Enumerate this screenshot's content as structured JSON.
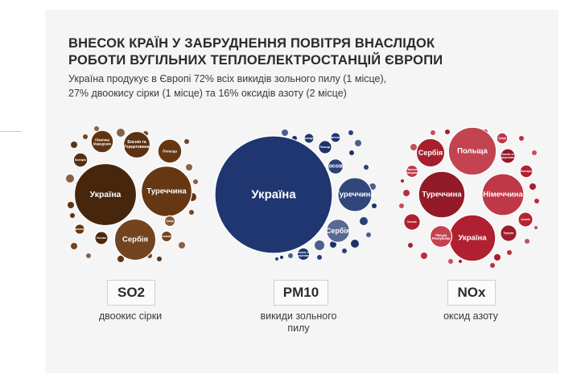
{
  "header": {
    "title_line1": "ВНЕСОК КРАЇН У ЗАБРУДНЕННЯ ПОВІТРЯ ВНАСЛІДОК",
    "title_line2": "РОБОТИ ВУГІЛЬНИХ ТЕПЛОЕЛЕКТРОСТАНЦІЙ ЄВРОПИ",
    "subtitle_line1": "Україна продукує в Європі  72% всіх викидів зольного пилу (1 місце),",
    "subtitle_line2": "27% двоокису сірки (1 місце) та 16% оксидів азоту (2 місце)"
  },
  "colors": {
    "so2": "#6b3a14",
    "pm10": "#1f3670",
    "nox": "#b82232",
    "card_bg": "#f5f5f6"
  },
  "chart_data": [
    {
      "type": "bubble",
      "metric": "SO2",
      "label": "двоокис сірки",
      "color": "#6b3a14",
      "share_ukraine_percent": 27,
      "bubbles": [
        {
          "name": "Україна",
          "value": 27
        },
        {
          "name": "Туреччина",
          "value": 18
        },
        {
          "name": "Сербія",
          "value": 12
        },
        {
          "name": "Боснія та Герцеговина",
          "value": 5
        },
        {
          "name": "Польща",
          "value": 4
        },
        {
          "name": "Північна Македонія",
          "value": 3.5
        },
        {
          "name": "Болгарія",
          "value": 1.4
        },
        {
          "name": "Косово",
          "value": 1.2
        },
        {
          "name": "Чорногорія",
          "value": 0.7
        },
        {
          "name": "Іспанія",
          "value": 0.8
        },
        {
          "name": "Греція",
          "value": 0.8
        }
      ]
    },
    {
      "type": "bubble",
      "metric": "PM10",
      "label_line1": "викиди зольного",
      "label_line2": "пилу",
      "color": "#1f3670",
      "share_ukraine_percent": 72,
      "bubbles": [
        {
          "name": "Україна",
          "value": 72
        },
        {
          "name": "Туреччина",
          "value": 6
        },
        {
          "name": "Сербія",
          "value": 2.8
        },
        {
          "name": "Косово",
          "value": 1.2
        },
        {
          "name": "Польща",
          "value": 0.9
        },
        {
          "name": "Боснія та Герцеговина",
          "value": 0.8
        },
        {
          "name": "Болгарія",
          "value": 0.5
        },
        {
          "name": "Німеччина",
          "value": 0.5
        }
      ]
    },
    {
      "type": "bubble",
      "metric": "NOx",
      "label": "оксид азоту",
      "color": "#b82232",
      "share_ukraine_percent": 16,
      "bubbles": [
        {
          "name": "Польща",
          "value": 17
        },
        {
          "name": "Україна",
          "value": 16
        },
        {
          "name": "Туреччина",
          "value": 16
        },
        {
          "name": "Німеччина",
          "value": 13
        },
        {
          "name": "Сербія",
          "value": 6
        },
        {
          "name": "Чеська Республіка",
          "value": 3.5
        },
        {
          "name": "Косово",
          "value": 2
        },
        {
          "name": "Румунія",
          "value": 2
        },
        {
          "name": "Іспанія",
          "value": 1.6
        },
        {
          "name": "Боснія та Герцеговина",
          "value": 1.6
        },
        {
          "name": "Болгарія",
          "value": 1.2
        },
        {
          "name": "Греція",
          "value": 0.9
        },
        {
          "name": "Північна Македонія",
          "value": 1.1
        }
      ]
    }
  ]
}
